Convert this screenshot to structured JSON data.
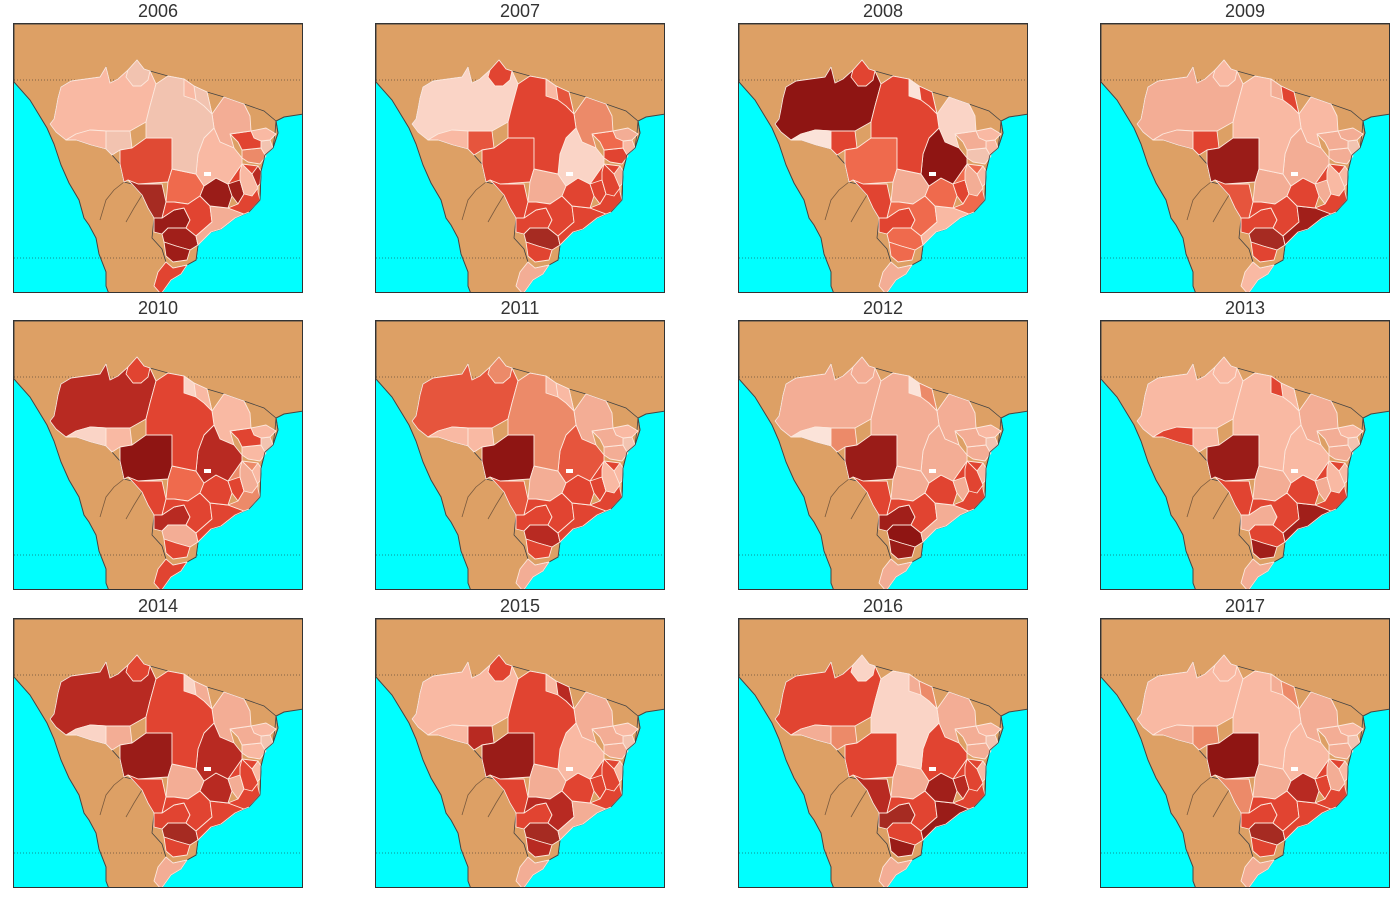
{
  "figure": {
    "panels": [
      {
        "year": "2006",
        "states": [
          "#f9b9a3",
          "#f2c3b0",
          "#f9b9a3",
          "#f2c3b0",
          "#e04a34",
          "#a62b22",
          "#9a1c18",
          "#a11f1a",
          "#9e1d18",
          "#e14431",
          "#ef6a4d",
          "#e14431",
          "#f3ad95",
          "#9a1c18",
          "#a11f1a",
          "#e14431",
          "#b82a22",
          "#f9b9a3",
          "#ec8a69",
          "#f2c3b0",
          "#f9b9a3",
          "#e14431",
          "#f3ad95"
        ]
      },
      {
        "year": "2007",
        "states": [
          "#fad4c6",
          "#e14431",
          "#f9b9a3",
          "#e6553d",
          "#e14431",
          "#e14431",
          "#e14431",
          "#a62b22",
          "#e14431",
          "#f3ad95",
          "#f3ad95",
          "#e14431",
          "#e14431",
          "#e14431",
          "#e14431",
          "#e14431",
          "#f3ad95",
          "#e14431",
          "#e14431",
          "#f9b9a3",
          "#f3ad95",
          "#ef6a4d",
          "#ec8a69"
        ]
      },
      {
        "year": "2008",
        "states": [
          "#8f1513",
          "#e14431",
          "#fbe3d9",
          "#e14431",
          "#ef6a4d",
          "#e14431",
          "#e14431",
          "#ef6a4d",
          "#ef6a4d",
          "#f3ad95",
          "#f3ad95",
          "#ef6a4d",
          "#f9b9a3",
          "#ef6a4d",
          "#e14431",
          "#ef6a4d",
          "#f9b9a3",
          "#f3ad95",
          "#f2c3b0",
          "#f9b9a3",
          "#f9b9a3",
          "#f3ad95",
          "#fad4c6"
        ]
      },
      {
        "year": "2009",
        "states": [
          "#f3ad95",
          "#f9b9a3",
          "#f3ad95",
          "#e14431",
          "#9a1c18",
          "#e6553d",
          "#e14431",
          "#a62b22",
          "#e14431",
          "#f9b9a3",
          "#f3ad95",
          "#e14431",
          "#a11f1a",
          "#e14431",
          "#f3ad95",
          "#e14431",
          "#f9b9a3",
          "#f9b9a3",
          "#f3ad95",
          "#f2c3b0",
          "#f3ad95",
          "#f3ad95",
          "#f9b9a3"
        ]
      },
      {
        "year": "2010",
        "states": [
          "#b82a22",
          "#e14431",
          "#fad4c6",
          "#f9b9a3",
          "#8f1513",
          "#e14431",
          "#b82a22",
          "#f3ad95",
          "#e14431",
          "#e14431",
          "#ef6a4d",
          "#e14431",
          "#e14431",
          "#e14431",
          "#e14431",
          "#ec8a69",
          "#f9b9a3",
          "#f3ad95",
          "#f9b9a3",
          "#f2c3b0",
          "#f9b9a3",
          "#e14431",
          "#f9b9a3"
        ]
      },
      {
        "year": "2011",
        "states": [
          "#e6553d",
          "#ec8a69",
          "#f9b9a3",
          "#f9b9a3",
          "#8f1513",
          "#e6553d",
          "#e14431",
          "#b82a22",
          "#e14431",
          "#f3ad95",
          "#f3ad95",
          "#e14431",
          "#e14431",
          "#e14431",
          "#e14431",
          "#e14431",
          "#f9b9a3",
          "#f9b9a3",
          "#f3ad95",
          "#f2c3b0",
          "#f9b9a3",
          "#f3ad95",
          "#f3ad95"
        ]
      },
      {
        "year": "2012",
        "states": [
          "#f3ad95",
          "#f3ad95",
          "#fbe3d9",
          "#ec8a69",
          "#9a1c18",
          "#e14431",
          "#a11f1a",
          "#8f1513",
          "#9a1c18",
          "#f3ad95",
          "#f3ad95",
          "#e14431",
          "#f3ad95",
          "#e14431",
          "#f3ad95",
          "#e14431",
          "#f9b9a3",
          "#e14431",
          "#f3ad95",
          "#f2c3b0",
          "#f9b9a3",
          "#f3ad95",
          "#f3ad95"
        ]
      },
      {
        "year": "2013",
        "states": [
          "#f9b9a3",
          "#f9b9a3",
          "#e14431",
          "#f9b9a3",
          "#9a1c18",
          "#e14431",
          "#f3ad95",
          "#e14431",
          "#a11f1a",
          "#f3ad95",
          "#f3ad95",
          "#e14431",
          "#a11f1a",
          "#e14431",
          "#f3ad95",
          "#e14431",
          "#f9b9a3",
          "#f9b9a3",
          "#f3ad95",
          "#f2c3b0",
          "#f9b9a3",
          "#f3ad95",
          "#f3ad95"
        ]
      },
      {
        "year": "2014",
        "states": [
          "#b82a22",
          "#e14431",
          "#fad4c6",
          "#f3ad95",
          "#9a1c18",
          "#e14431",
          "#e14431",
          "#a62b22",
          "#e14431",
          "#f3ad95",
          "#f3ad95",
          "#e14431",
          "#e14431",
          "#b82a22",
          "#f3ad95",
          "#e14431",
          "#f9b9a3",
          "#e14431",
          "#f9b9a3",
          "#f2c3b0",
          "#f9b9a3",
          "#f3ad95",
          "#f3ad95"
        ]
      },
      {
        "year": "2015",
        "states": [
          "#f9b9a3",
          "#e14431",
          "#f9b9a3",
          "#b82a22",
          "#9a1c18",
          "#e14431",
          "#e14431",
          "#a62b22",
          "#b82a22",
          "#f3ad95",
          "#f3ad95",
          "#b82a22",
          "#f3ad95",
          "#e14431",
          "#e14431",
          "#e14431",
          "#f9b9a3",
          "#e14431",
          "#f3ad95",
          "#f2c3b0",
          "#f9b9a3",
          "#f3ad95",
          "#f3ad95"
        ]
      },
      {
        "year": "2016",
        "states": [
          "#e14431",
          "#fad4c6",
          "#f3ad95",
          "#ec8a69",
          "#e14431",
          "#b82a22",
          "#a62b22",
          "#e14431",
          "#9a1c18",
          "#f3ad95",
          "#f3ad95",
          "#e14431",
          "#9a1c18",
          "#a11f1a",
          "#b82a22",
          "#e14431",
          "#f9b9a3",
          "#e14431",
          "#f3ad95",
          "#f2c3b0",
          "#f9b9a3",
          "#f3ad95",
          "#f3ad95"
        ]
      },
      {
        "year": "2017",
        "states": [
          "#f9b9a3",
          "#f9b9a3",
          "#f3ad95",
          "#ec8a69",
          "#8f1513",
          "#ec8a69",
          "#e14431",
          "#a62b22",
          "#e14431",
          "#f3ad95",
          "#f3ad95",
          "#e14431",
          "#e14431",
          "#b82a22",
          "#e14431",
          "#e14431",
          "#f9b9a3",
          "#f3ad95",
          "#f3ad95",
          "#f2c3b0",
          "#f9b9a3",
          "#f3ad95",
          "#f3ad95"
        ]
      }
    ],
    "colors": {
      "ocean": "#00ffff",
      "land": "#dda065",
      "coastline": "#444444",
      "border": "#fde7dc",
      "graticule": "#222222",
      "title": "#333333"
    }
  }
}
